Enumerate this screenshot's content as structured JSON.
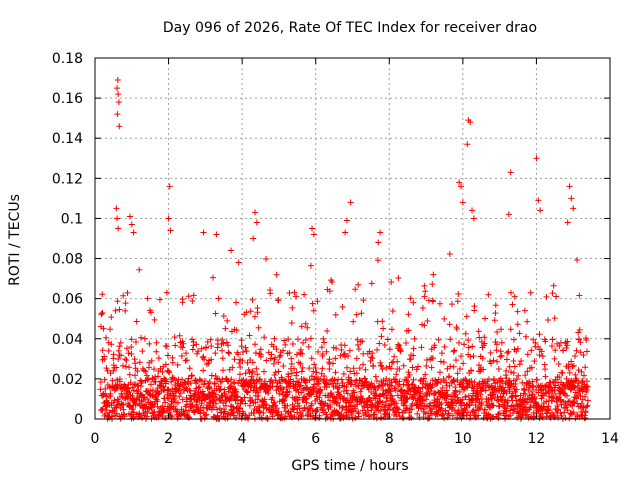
{
  "chart_data": {
    "type": "scatter",
    "title": "Day 096 of 2026, Rate Of TEC Index for receiver drao",
    "xlabel": "GPS time / hours",
    "ylabel": "ROTI / TECUs",
    "xlim": [
      0,
      14
    ],
    "ylim": [
      0,
      0.18
    ],
    "x_ticks": [
      0,
      2,
      4,
      6,
      8,
      10,
      12,
      14
    ],
    "y_ticks": [
      0,
      0.02,
      0.04,
      0.06,
      0.08,
      0.1,
      0.12,
      0.14,
      0.16,
      0.18
    ],
    "x_tick_labels": [
      "0",
      "2",
      "4",
      "6",
      "8",
      "10",
      "12",
      "14"
    ],
    "y_tick_labels": [
      "0",
      "0.02",
      "0.04",
      "0.06",
      "0.08",
      "0.1",
      "0.12",
      "0.14",
      "0.16",
      "0.18"
    ],
    "grid": true,
    "marker": "+",
    "color": "#ff0000",
    "series": [
      {
        "name": "ROTI",
        "x_range": [
          0.15,
          13.4
        ],
        "typical_range": [
          0.0,
          0.04
        ],
        "notable_points": [
          {
            "x": 0.62,
            "y": 0.169
          },
          {
            "x": 0.6,
            "y": 0.165
          },
          {
            "x": 0.63,
            "y": 0.162
          },
          {
            "x": 0.65,
            "y": 0.158
          },
          {
            "x": 0.61,
            "y": 0.152
          },
          {
            "x": 0.66,
            "y": 0.146
          },
          {
            "x": 0.58,
            "y": 0.105
          },
          {
            "x": 0.6,
            "y": 0.1
          },
          {
            "x": 0.63,
            "y": 0.095
          },
          {
            "x": 0.95,
            "y": 0.101
          },
          {
            "x": 1.0,
            "y": 0.097
          },
          {
            "x": 1.05,
            "y": 0.093
          },
          {
            "x": 2.03,
            "y": 0.116
          },
          {
            "x": 2.0,
            "y": 0.1
          },
          {
            "x": 2.05,
            "y": 0.094
          },
          {
            "x": 2.95,
            "y": 0.093
          },
          {
            "x": 3.3,
            "y": 0.092
          },
          {
            "x": 3.7,
            "y": 0.084
          },
          {
            "x": 4.35,
            "y": 0.103
          },
          {
            "x": 4.4,
            "y": 0.098
          },
          {
            "x": 4.3,
            "y": 0.09
          },
          {
            "x": 5.9,
            "y": 0.095
          },
          {
            "x": 5.95,
            "y": 0.092
          },
          {
            "x": 6.95,
            "y": 0.108
          },
          {
            "x": 6.85,
            "y": 0.099
          },
          {
            "x": 6.8,
            "y": 0.093
          },
          {
            "x": 7.75,
            "y": 0.093
          },
          {
            "x": 7.7,
            "y": 0.088
          },
          {
            "x": 9.9,
            "y": 0.118
          },
          {
            "x": 9.95,
            "y": 0.116
          },
          {
            "x": 10.0,
            "y": 0.108
          },
          {
            "x": 10.15,
            "y": 0.149
          },
          {
            "x": 10.2,
            "y": 0.148
          },
          {
            "x": 10.12,
            "y": 0.137
          },
          {
            "x": 10.25,
            "y": 0.104
          },
          {
            "x": 10.3,
            "y": 0.1
          },
          {
            "x": 11.3,
            "y": 0.123
          },
          {
            "x": 11.25,
            "y": 0.102
          },
          {
            "x": 12.0,
            "y": 0.13
          },
          {
            "x": 12.05,
            "y": 0.109
          },
          {
            "x": 12.1,
            "y": 0.104
          },
          {
            "x": 12.9,
            "y": 0.116
          },
          {
            "x": 12.95,
            "y": 0.11
          },
          {
            "x": 13.0,
            "y": 0.105
          },
          {
            "x": 12.85,
            "y": 0.098
          }
        ]
      }
    ]
  }
}
